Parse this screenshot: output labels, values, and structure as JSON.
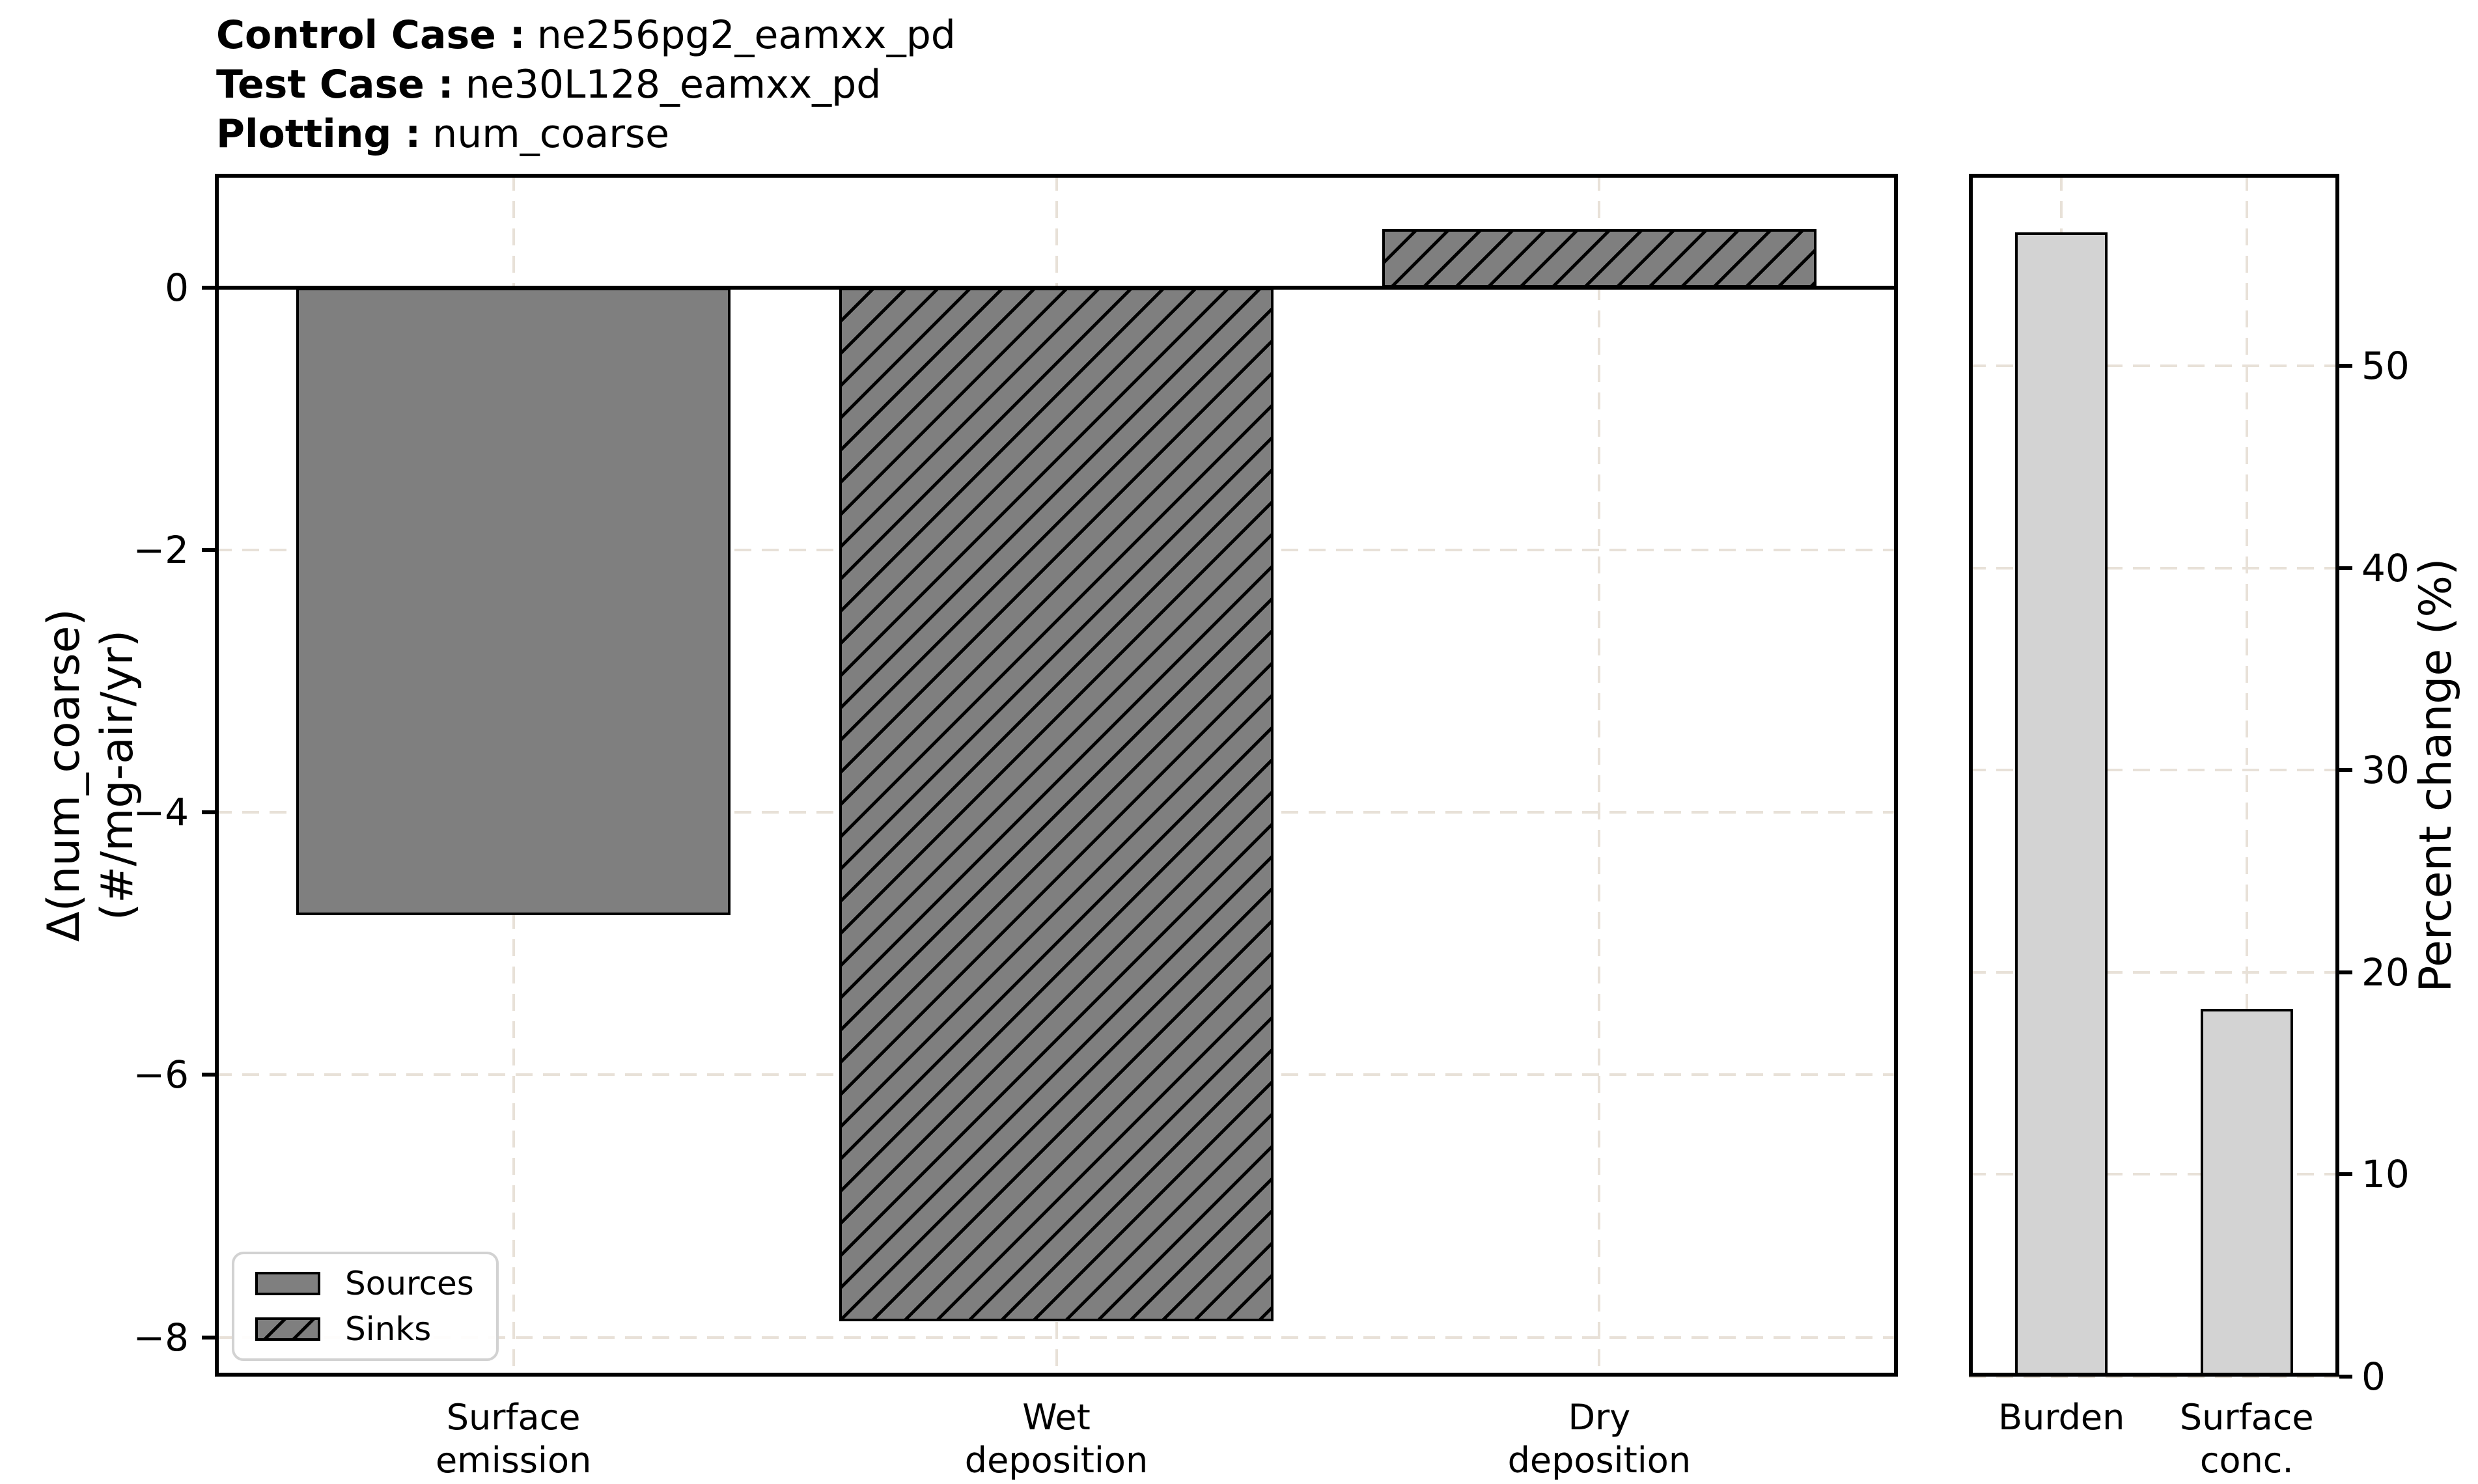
{
  "header": [
    {
      "label": "Control Case :",
      "value": "ne256pg2_eamxx_pd"
    },
    {
      "label": "Test Case :",
      "value": "ne30L128_eamxx_pd"
    },
    {
      "label": "Plotting :",
      "value": "num_coarse"
    }
  ],
  "chart_data": [
    {
      "id": "budget-panel",
      "type": "bar",
      "categories": [
        [
          "Surface",
          "emission"
        ],
        [
          "Wet",
          "deposition"
        ],
        [
          "Dry",
          "deposition"
        ]
      ],
      "values": [
        -4.78,
        -7.88,
        0.45
      ],
      "bar_styles": [
        "solid",
        "hatched",
        "hatched"
      ],
      "ylabel_lines": [
        "Δ(num_coarse)",
        "(#/mg-air/yr)"
      ],
      "yticks": [
        0,
        -2,
        -4,
        -6,
        -8
      ],
      "ytick_labels": [
        "0",
        "−2",
        "−4",
        "−6",
        "−8"
      ],
      "ylim": [
        -8.3,
        0.87
      ],
      "bar_width_fraction": 0.8,
      "zero_line": true,
      "grid": "dashed",
      "legend": {
        "position": "lower left",
        "entries": [
          {
            "label": "Sources",
            "style": "solid"
          },
          {
            "label": "Sinks",
            "style": "hatched"
          }
        ]
      }
    },
    {
      "id": "percent-panel",
      "type": "bar",
      "categories": [
        [
          "Burden"
        ],
        [
          "Surface",
          "conc."
        ]
      ],
      "values": [
        56.6,
        18.2
      ],
      "bar_styles": [
        "light",
        "light"
      ],
      "ylabel": "Percent change (%)",
      "yticks": [
        0,
        10,
        20,
        30,
        40,
        50
      ],
      "ytick_labels": [
        "0",
        "10",
        "20",
        "30",
        "40",
        "50"
      ],
      "ylim": [
        0,
        59.5
      ],
      "bar_width_fraction": 0.5,
      "zero_line": false,
      "grid": "dashed"
    }
  ],
  "colors": {
    "bar_solid": "#7f7f7f",
    "bar_light": "#d3d3d3",
    "edge": "#000000",
    "grid": "#e8e1d8",
    "legend_border": "#d2d2d2",
    "background": "#ffffff",
    "text": "#000000"
  }
}
